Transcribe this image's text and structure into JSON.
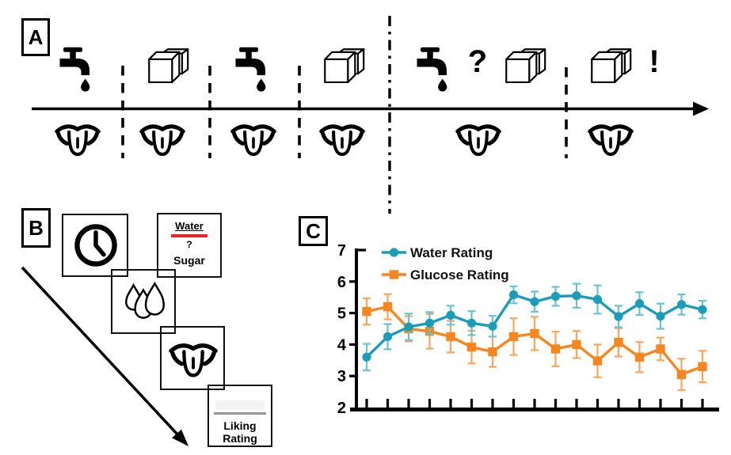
{
  "figure": {
    "background": "#ffffff",
    "ink": "#000000"
  },
  "panels": {
    "a": {
      "label": "A",
      "question_mark": "?",
      "exclamation_mark": "!",
      "timeline_trials": [
        {
          "stimulus": "water-faucet",
          "response": "taste",
          "divider_after": "dashed"
        },
        {
          "stimulus": "sugar-cubes",
          "response": "taste",
          "divider_after": "dashed"
        },
        {
          "stimulus": "water-faucet",
          "response": "taste",
          "divider_after": "dashed"
        },
        {
          "stimulus": "sugar-cubes",
          "response": "taste",
          "divider_after": "dash-dot-phase-break"
        },
        {
          "stimulus": "water-or-sugar-uncertain",
          "response": "taste",
          "divider_after": "dashed"
        },
        {
          "stimulus": "sugar-cubes-surprise",
          "response": "taste",
          "divider_after": null
        }
      ]
    },
    "b": {
      "label": "B",
      "cue_box": {
        "top": "Water",
        "middle": "?",
        "bottom": "Sugar",
        "underline_color": "#ee2128"
      },
      "trial_steps": [
        "delay-clock",
        "cue-word",
        "liquid-delivery",
        "taste",
        "liking-rating"
      ],
      "liking_box": {
        "line1": "Liking",
        "line2": "Rating"
      }
    },
    "c": {
      "label": "C"
    }
  },
  "icons": {
    "faucet": "water-tap-with-drip",
    "sugar": "sugar-cubes",
    "tongue": "tongue-tasting",
    "clock": "clock-delay",
    "drops": "liquid-drops"
  },
  "chart_data": {
    "type": "line",
    "title": "",
    "xlabel": "",
    "ylabel": "",
    "ylim": [
      2,
      7
    ],
    "yticks": [
      2,
      3,
      4,
      5,
      6,
      7
    ],
    "x": [
      1,
      2,
      3,
      4,
      5,
      6,
      7,
      8,
      9,
      10,
      11,
      12,
      13,
      14,
      15,
      16,
      17
    ],
    "x_tick_labels_visible": false,
    "grid": false,
    "legend_position": "top-left-inside",
    "error_bars": true,
    "series": [
      {
        "name": "Glucose Rating",
        "marker": "square",
        "color": "#f6861f",
        "error_color": "#faa55a",
        "values": [
          5.05,
          5.2,
          4.5,
          4.42,
          4.25,
          3.92,
          3.77,
          4.25,
          4.35,
          3.86,
          4.0,
          3.48,
          4.07,
          3.6,
          3.86,
          3.05,
          3.3
        ],
        "errors": [
          0.42,
          0.4,
          0.4,
          0.55,
          0.5,
          0.52,
          0.48,
          0.58,
          0.53,
          0.55,
          0.43,
          0.52,
          0.45,
          0.48,
          0.36,
          0.5,
          0.5
        ]
      },
      {
        "name": "Water Rating",
        "marker": "circle",
        "color": "#1b9db9",
        "error_color": "#66c3d6",
        "values": [
          3.6,
          4.25,
          4.56,
          4.68,
          4.93,
          4.68,
          4.58,
          5.58,
          5.36,
          5.53,
          5.55,
          5.43,
          4.89,
          5.3,
          4.9,
          5.27,
          5.11
        ],
        "errors": [
          0.42,
          0.4,
          0.42,
          0.35,
          0.3,
          0.38,
          0.33,
          0.27,
          0.32,
          0.3,
          0.38,
          0.45,
          0.34,
          0.36,
          0.4,
          0.32,
          0.28
        ]
      }
    ]
  }
}
